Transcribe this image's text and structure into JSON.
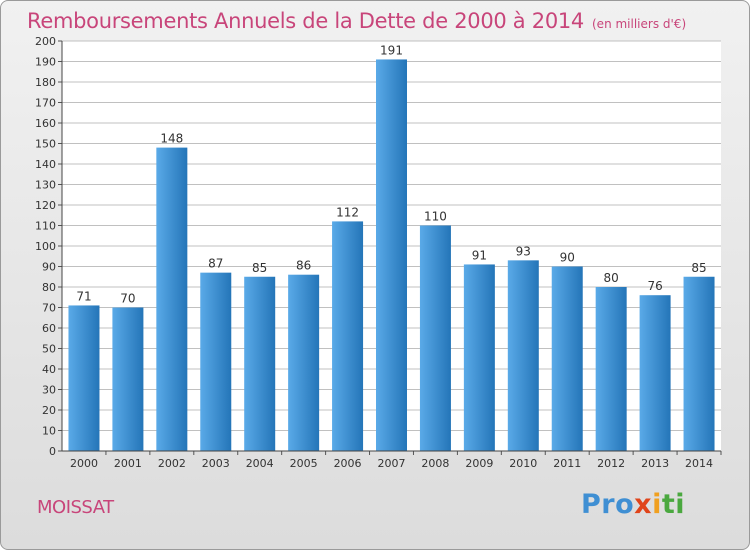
{
  "header": {
    "title": "Remboursements Annuels de la Dette de 2000 à 2014",
    "unit": "(en milliers d'€)"
  },
  "footer": {
    "commune": "MOISSAT",
    "logo_text": "Proxiti"
  },
  "colors": {
    "title": "#c8457a",
    "bar_light": "#5aaae8",
    "bar_dark": "#2475b8",
    "grid": "#c0c0c0"
  },
  "chart_data": {
    "type": "bar",
    "title": "Remboursements Annuels de la Dette de 2000 à 2014",
    "unit": "(en milliers d'€)",
    "categories": [
      "2000",
      "2001",
      "2002",
      "2003",
      "2004",
      "2005",
      "2006",
      "2007",
      "2008",
      "2009",
      "2010",
      "2011",
      "2012",
      "2013",
      "2014"
    ],
    "values": [
      71,
      70,
      148,
      87,
      85,
      86,
      112,
      191,
      110,
      91,
      93,
      90,
      80,
      76,
      85
    ],
    "ylim": [
      0,
      200
    ],
    "yticks": [
      0,
      10,
      20,
      30,
      40,
      50,
      60,
      70,
      80,
      90,
      100,
      110,
      120,
      130,
      140,
      150,
      160,
      170,
      180,
      190,
      200
    ],
    "grid": true,
    "data_labels": true
  }
}
